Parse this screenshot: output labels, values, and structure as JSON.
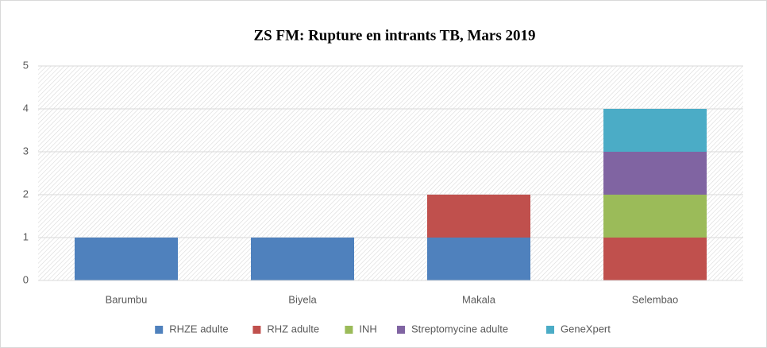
{
  "chart_data": {
    "type": "stacked-bar",
    "title": "ZS FM: Rupture en intrants TB, Mars 2019",
    "categories": [
      "Barumbu",
      "Biyela",
      "Makala",
      "Selembao"
    ],
    "series": [
      {
        "name": "RHZE adulte",
        "color": "#4f81bd",
        "values": [
          1,
          1,
          1,
          0
        ]
      },
      {
        "name": "RHZ adulte",
        "color": "#c0504d",
        "values": [
          0,
          0,
          1,
          1
        ]
      },
      {
        "name": "INH",
        "color": "#9bbb59",
        "values": [
          0,
          0,
          0,
          1
        ]
      },
      {
        "name": "Streptomycine adulte",
        "color": "#8064a2",
        "values": [
          0,
          0,
          0,
          1
        ]
      },
      {
        "name": "GeneXpert",
        "color": "#4bacc6",
        "values": [
          0,
          0,
          0,
          1
        ]
      }
    ],
    "ylim": [
      0,
      5
    ],
    "yticks": [
      0,
      1,
      2,
      3,
      4,
      5
    ],
    "grid": true,
    "legend": "bottom"
  }
}
